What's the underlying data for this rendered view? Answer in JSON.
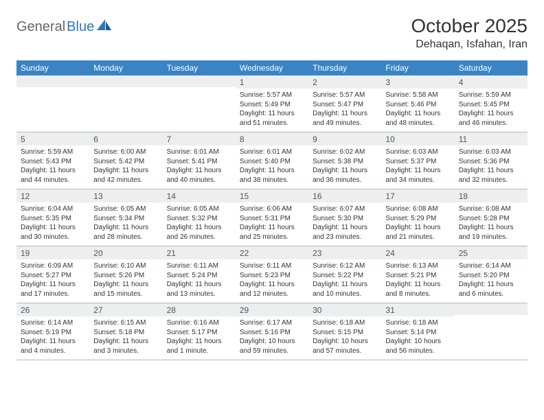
{
  "logo": {
    "part1": "General",
    "part2": "Blue"
  },
  "title": "October 2025",
  "location": "Dehaqan, Isfahan, Iran",
  "colors": {
    "header_bg": "#3b84c4",
    "header_fg": "#ffffff",
    "daynum_bg": "#eceeef",
    "text": "#333333",
    "logo_gray": "#666666",
    "logo_blue": "#2c77b8",
    "border": "#b8b8b8"
  },
  "weekdays": [
    "Sunday",
    "Monday",
    "Tuesday",
    "Wednesday",
    "Thursday",
    "Friday",
    "Saturday"
  ],
  "weeks": [
    [
      {
        "n": "",
        "sr": "",
        "ss": "",
        "dl": ""
      },
      {
        "n": "",
        "sr": "",
        "ss": "",
        "dl": ""
      },
      {
        "n": "",
        "sr": "",
        "ss": "",
        "dl": ""
      },
      {
        "n": "1",
        "sr": "5:57 AM",
        "ss": "5:49 PM",
        "dl": "11 hours and 51 minutes."
      },
      {
        "n": "2",
        "sr": "5:57 AM",
        "ss": "5:47 PM",
        "dl": "11 hours and 49 minutes."
      },
      {
        "n": "3",
        "sr": "5:58 AM",
        "ss": "5:46 PM",
        "dl": "11 hours and 48 minutes."
      },
      {
        "n": "4",
        "sr": "5:59 AM",
        "ss": "5:45 PM",
        "dl": "11 hours and 46 minutes."
      }
    ],
    [
      {
        "n": "5",
        "sr": "5:59 AM",
        "ss": "5:43 PM",
        "dl": "11 hours and 44 minutes."
      },
      {
        "n": "6",
        "sr": "6:00 AM",
        "ss": "5:42 PM",
        "dl": "11 hours and 42 minutes."
      },
      {
        "n": "7",
        "sr": "6:01 AM",
        "ss": "5:41 PM",
        "dl": "11 hours and 40 minutes."
      },
      {
        "n": "8",
        "sr": "6:01 AM",
        "ss": "5:40 PM",
        "dl": "11 hours and 38 minutes."
      },
      {
        "n": "9",
        "sr": "6:02 AM",
        "ss": "5:38 PM",
        "dl": "11 hours and 36 minutes."
      },
      {
        "n": "10",
        "sr": "6:03 AM",
        "ss": "5:37 PM",
        "dl": "11 hours and 34 minutes."
      },
      {
        "n": "11",
        "sr": "6:03 AM",
        "ss": "5:36 PM",
        "dl": "11 hours and 32 minutes."
      }
    ],
    [
      {
        "n": "12",
        "sr": "6:04 AM",
        "ss": "5:35 PM",
        "dl": "11 hours and 30 minutes."
      },
      {
        "n": "13",
        "sr": "6:05 AM",
        "ss": "5:34 PM",
        "dl": "11 hours and 28 minutes."
      },
      {
        "n": "14",
        "sr": "6:05 AM",
        "ss": "5:32 PM",
        "dl": "11 hours and 26 minutes."
      },
      {
        "n": "15",
        "sr": "6:06 AM",
        "ss": "5:31 PM",
        "dl": "11 hours and 25 minutes."
      },
      {
        "n": "16",
        "sr": "6:07 AM",
        "ss": "5:30 PM",
        "dl": "11 hours and 23 minutes."
      },
      {
        "n": "17",
        "sr": "6:08 AM",
        "ss": "5:29 PM",
        "dl": "11 hours and 21 minutes."
      },
      {
        "n": "18",
        "sr": "6:08 AM",
        "ss": "5:28 PM",
        "dl": "11 hours and 19 minutes."
      }
    ],
    [
      {
        "n": "19",
        "sr": "6:09 AM",
        "ss": "5:27 PM",
        "dl": "11 hours and 17 minutes."
      },
      {
        "n": "20",
        "sr": "6:10 AM",
        "ss": "5:26 PM",
        "dl": "11 hours and 15 minutes."
      },
      {
        "n": "21",
        "sr": "6:11 AM",
        "ss": "5:24 PM",
        "dl": "11 hours and 13 minutes."
      },
      {
        "n": "22",
        "sr": "6:11 AM",
        "ss": "5:23 PM",
        "dl": "11 hours and 12 minutes."
      },
      {
        "n": "23",
        "sr": "6:12 AM",
        "ss": "5:22 PM",
        "dl": "11 hours and 10 minutes."
      },
      {
        "n": "24",
        "sr": "6:13 AM",
        "ss": "5:21 PM",
        "dl": "11 hours and 8 minutes."
      },
      {
        "n": "25",
        "sr": "6:14 AM",
        "ss": "5:20 PM",
        "dl": "11 hours and 6 minutes."
      }
    ],
    [
      {
        "n": "26",
        "sr": "6:14 AM",
        "ss": "5:19 PM",
        "dl": "11 hours and 4 minutes."
      },
      {
        "n": "27",
        "sr": "6:15 AM",
        "ss": "5:18 PM",
        "dl": "11 hours and 3 minutes."
      },
      {
        "n": "28",
        "sr": "6:16 AM",
        "ss": "5:17 PM",
        "dl": "11 hours and 1 minute."
      },
      {
        "n": "29",
        "sr": "6:17 AM",
        "ss": "5:16 PM",
        "dl": "10 hours and 59 minutes."
      },
      {
        "n": "30",
        "sr": "6:18 AM",
        "ss": "5:15 PM",
        "dl": "10 hours and 57 minutes."
      },
      {
        "n": "31",
        "sr": "6:18 AM",
        "ss": "5:14 PM",
        "dl": "10 hours and 56 minutes."
      },
      {
        "n": "",
        "sr": "",
        "ss": "",
        "dl": ""
      }
    ]
  ],
  "labels": {
    "sunrise": "Sunrise:",
    "sunset": "Sunset:",
    "daylight": "Daylight:"
  }
}
